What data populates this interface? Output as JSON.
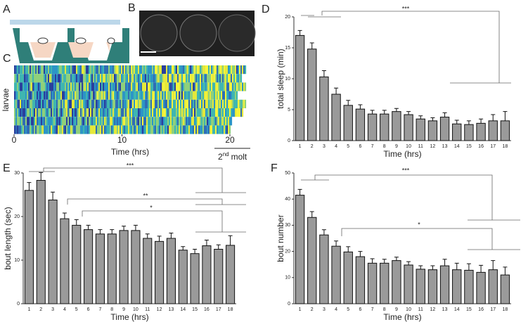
{
  "panel_labels": [
    "A",
    "B",
    "C",
    "D",
    "E",
    "F"
  ],
  "panel_c": {
    "ylabel": "larvae",
    "xticks": [
      0,
      10,
      20
    ],
    "xlabel": "Time (hrs)",
    "molt_num": "2",
    "molt_sup": "nd",
    "molt_text": "molt"
  },
  "chart_data": [
    {
      "type": "bar",
      "ylabel": "total sleep (min)",
      "xlabel": "Time (hrs)",
      "color": "#9a9a9a",
      "categories": [
        "1",
        "2",
        "3",
        "4",
        "5",
        "6",
        "7",
        "8",
        "9",
        "10",
        "11",
        "12",
        "13",
        "14",
        "15",
        "16",
        "17",
        "18"
      ],
      "values": [
        17,
        14.8,
        10.3,
        7.5,
        5.7,
        5.1,
        4.3,
        4.3,
        4.7,
        4.2,
        3.5,
        3.2,
        3.8,
        2.7,
        2.6,
        2.8,
        3.2,
        3.2
      ],
      "errors": [
        0.8,
        1.0,
        1.0,
        1.0,
        0.8,
        0.7,
        0.6,
        0.6,
        0.5,
        0.5,
        0.5,
        0.5,
        0.7,
        0.6,
        0.6,
        0.7,
        1.0,
        1.5
      ],
      "ylim": [
        0,
        20
      ],
      "yticks": [
        0,
        5,
        10,
        15,
        20
      ],
      "annotations": [
        "***"
      ]
    },
    {
      "type": "bar",
      "ylabel": "bout length (sec)",
      "xlabel": "Time (hrs)",
      "color": "#9a9a9a",
      "categories": [
        "1",
        "2",
        "3",
        "4",
        "5",
        "6",
        "7",
        "8",
        "9",
        "10",
        "11",
        "12",
        "13",
        "14",
        "15",
        "16",
        "17",
        "18"
      ],
      "values": [
        26,
        28.3,
        23.8,
        19.5,
        18,
        17,
        16,
        16,
        16.8,
        16.8,
        15,
        14.3,
        15,
        12.3,
        11.5,
        13.3,
        12.5,
        13.4
      ],
      "errors": [
        1.8,
        1.8,
        1.8,
        1.3,
        1.3,
        1.0,
        1.0,
        1.0,
        1.0,
        1.2,
        1.0,
        1.2,
        1.2,
        0.8,
        1.0,
        1.3,
        1.0,
        2.2
      ],
      "ylim": [
        0,
        30
      ],
      "yticks": [
        0,
        10,
        20,
        30
      ],
      "annotations": [
        "***",
        "**",
        "*"
      ]
    },
    {
      "type": "bar",
      "ylabel": "bout number",
      "xlabel": "Time (hrs)",
      "color": "#9a9a9a",
      "categories": [
        "1",
        "2",
        "3",
        "4",
        "5",
        "6",
        "7",
        "8",
        "9",
        "10",
        "11",
        "12",
        "13",
        "14",
        "15",
        "16",
        "17",
        "18"
      ],
      "values": [
        41.5,
        33,
        26.3,
        22,
        19.8,
        18,
        15.5,
        15.5,
        16.5,
        14.8,
        13.2,
        13,
        14.5,
        13,
        12.8,
        12,
        13,
        11
      ],
      "errors": [
        2.2,
        2.2,
        2,
        2,
        2,
        2,
        1.7,
        1.5,
        1.3,
        1.3,
        1.3,
        1.5,
        2.5,
        2.5,
        2.5,
        2.7,
        3.5,
        3
      ],
      "ylim": [
        0,
        50
      ],
      "yticks": [
        0,
        10,
        20,
        30,
        40,
        50
      ],
      "annotations": [
        "***",
        "*"
      ]
    }
  ]
}
